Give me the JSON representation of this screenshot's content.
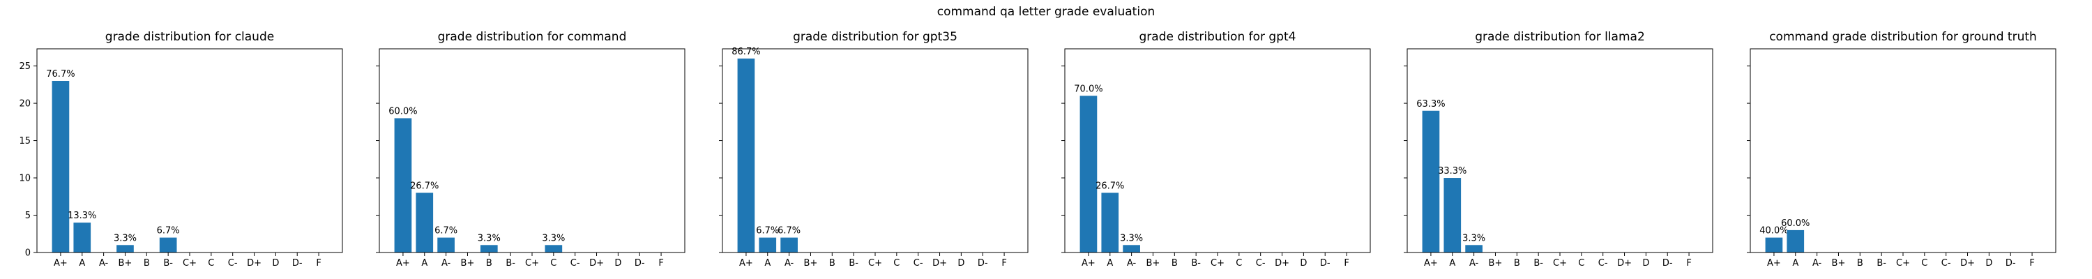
{
  "suptitle": "command qa letter grade evaluation",
  "chart_data": [
    {
      "type": "bar",
      "title": "grade distribution for claude",
      "categories": [
        "A+",
        "A",
        "A-",
        "B+",
        "B",
        "B-",
        "C+",
        "C",
        "C-",
        "D+",
        "D",
        "D-",
        "F"
      ],
      "values": [
        23,
        4,
        0,
        1,
        0,
        2,
        0,
        0,
        0,
        0,
        0,
        0,
        0
      ],
      "data_labels": [
        "76.7%",
        "13.3%",
        "",
        "3.3%",
        "",
        "6.7%",
        "",
        "",
        "",
        "",
        "",
        "",
        ""
      ],
      "ylim": [
        0,
        27.3
      ],
      "yticks": [
        0,
        5,
        10,
        15,
        20,
        25
      ],
      "color": "#1f77b4"
    },
    {
      "type": "bar",
      "title": "grade distribution for command",
      "categories": [
        "A+",
        "A",
        "A-",
        "B+",
        "B",
        "B-",
        "C+",
        "C",
        "C-",
        "D+",
        "D",
        "D-",
        "F"
      ],
      "values": [
        18,
        8,
        2,
        0,
        1,
        0,
        0,
        1,
        0,
        0,
        0,
        0,
        0
      ],
      "data_labels": [
        "60.0%",
        "26.7%",
        "6.7%",
        "",
        "3.3%",
        "",
        "",
        "3.3%",
        "",
        "",
        "",
        "",
        ""
      ],
      "ylim": [
        0,
        27.3
      ],
      "color": "#1f77b4"
    },
    {
      "type": "bar",
      "title": "grade distribution for gpt35",
      "categories": [
        "A+",
        "A",
        "A-",
        "B+",
        "B",
        "B-",
        "C+",
        "C",
        "C-",
        "D+",
        "D",
        "D-",
        "F"
      ],
      "values": [
        26,
        2,
        2,
        0,
        0,
        0,
        0,
        0,
        0,
        0,
        0,
        0,
        0
      ],
      "data_labels": [
        "86.7%",
        "6.7%",
        "6.7%",
        "",
        "",
        "",
        "",
        "",
        "",
        "",
        "",
        "",
        ""
      ],
      "ylim": [
        0,
        27.3
      ],
      "color": "#1f77b4"
    },
    {
      "type": "bar",
      "title": "grade distribution for gpt4",
      "categories": [
        "A+",
        "A",
        "A-",
        "B+",
        "B",
        "B-",
        "C+",
        "C",
        "C-",
        "D+",
        "D",
        "D-",
        "F"
      ],
      "values": [
        21,
        8,
        1,
        0,
        0,
        0,
        0,
        0,
        0,
        0,
        0,
        0,
        0
      ],
      "data_labels": [
        "70.0%",
        "26.7%",
        "3.3%",
        "",
        "",
        "",
        "",
        "",
        "",
        "",
        "",
        "",
        ""
      ],
      "ylim": [
        0,
        27.3
      ],
      "color": "#1f77b4"
    },
    {
      "type": "bar",
      "title": "grade distribution for llama2",
      "categories": [
        "A+",
        "A",
        "A-",
        "B+",
        "B",
        "B-",
        "C+",
        "C",
        "C-",
        "D+",
        "D",
        "D-",
        "F"
      ],
      "values": [
        19,
        10,
        1,
        0,
        0,
        0,
        0,
        0,
        0,
        0,
        0,
        0,
        0
      ],
      "data_labels": [
        "63.3%",
        "33.3%",
        "3.3%",
        "",
        "",
        "",
        "",
        "",
        "",
        "",
        "",
        "",
        ""
      ],
      "ylim": [
        0,
        27.3
      ],
      "color": "#1f77b4"
    },
    {
      "type": "bar",
      "title": "command grade distribution for ground truth",
      "categories": [
        "A+",
        "A",
        "A-",
        "B+",
        "B",
        "B-",
        "C+",
        "C",
        "C-",
        "D+",
        "D",
        "D-",
        "F"
      ],
      "values": [
        2,
        3,
        0,
        0,
        0,
        0,
        0,
        0,
        0,
        0,
        0,
        0,
        0
      ],
      "data_labels": [
        "40.0%",
        "60.0%",
        "",
        "",
        "",
        "",
        "",
        "",
        "",
        "",
        "",
        "",
        ""
      ],
      "ylim": [
        0,
        27.3
      ],
      "color": "#1f77b4"
    }
  ]
}
